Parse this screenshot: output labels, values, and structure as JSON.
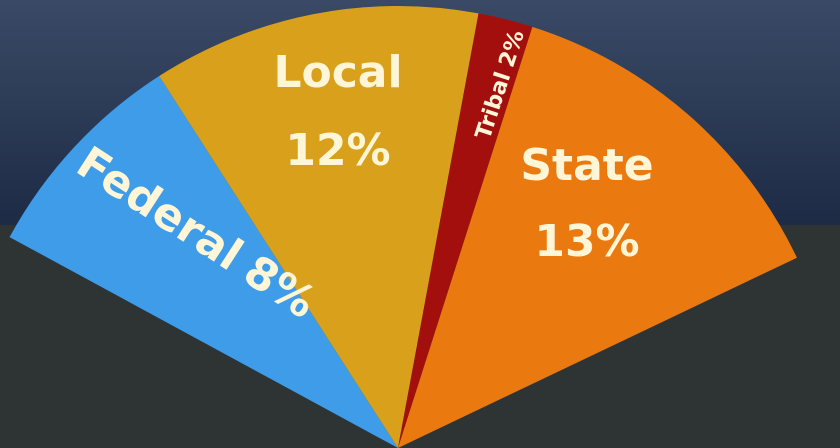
{
  "chart_data": {
    "type": "pie",
    "categories": [
      "Federal",
      "Local",
      "Tribal",
      "State"
    ],
    "values": [
      8,
      12,
      2,
      13
    ],
    "value_labels": [
      "8%",
      "12%",
      "2%",
      "13%"
    ],
    "colors": [
      "#3f9ce8",
      "#d9a11b",
      "#a30f0c",
      "#ea7a10"
    ]
  }
}
